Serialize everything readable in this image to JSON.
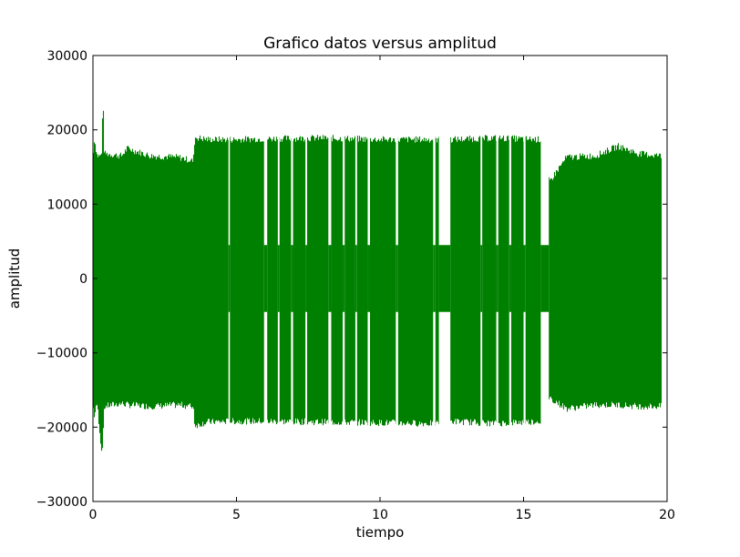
{
  "chart_data": {
    "type": "line",
    "title": "Grafico datos versus amplitud",
    "xlabel": "tiempo",
    "ylabel": "amplitud",
    "xlim": [
      0,
      20
    ],
    "ylim": [
      -30000,
      30000
    ],
    "x_ticks": [
      0,
      5,
      10,
      15,
      20
    ],
    "x_tick_labels": [
      "0",
      "5",
      "10",
      "15",
      "20"
    ],
    "y_ticks": [
      -30000,
      -20000,
      -10000,
      0,
      10000,
      20000,
      30000
    ],
    "y_tick_labels": [
      "−30000",
      "−20000",
      "−10000",
      "0",
      "10000",
      "20000",
      "30000"
    ],
    "grid": false,
    "line_color": "#008000",
    "series": [
      {
        "envelope": [
          {
            "x": 0.0,
            "max": 16000,
            "min": -17000
          },
          {
            "x": 0.05,
            "max": 18800,
            "min": -18500
          },
          {
            "x": 0.15,
            "max": 16500,
            "min": -16800
          },
          {
            "x": 0.3,
            "max": 16500,
            "min": -23200
          },
          {
            "x": 0.35,
            "max": 24500,
            "min": -22000
          },
          {
            "x": 0.4,
            "max": 16800,
            "min": -17200
          },
          {
            "x": 1.0,
            "max": 16500,
            "min": -16800
          },
          {
            "x": 1.2,
            "max": 17500,
            "min": -17000
          },
          {
            "x": 2.0,
            "max": 16500,
            "min": -17200
          },
          {
            "x": 3.0,
            "max": 16300,
            "min": -17000
          },
          {
            "x": 3.5,
            "max": 15800,
            "min": -17200
          },
          {
            "x": 3.55,
            "max": 19000,
            "min": -19800
          },
          {
            "x": 4.0,
            "max": 18700,
            "min": -19300
          },
          {
            "x": 5.0,
            "max": 18700,
            "min": -19200
          },
          {
            "x": 6.0,
            "max": 18800,
            "min": -19200
          },
          {
            "x": 8.0,
            "max": 18900,
            "min": -19300
          },
          {
            "x": 10.0,
            "max": 18700,
            "min": -19400
          },
          {
            "x": 12.0,
            "max": 18700,
            "min": -19500
          },
          {
            "x": 12.5,
            "max": 18700,
            "min": -19200
          },
          {
            "x": 14.0,
            "max": 18900,
            "min": -19500
          },
          {
            "x": 15.6,
            "max": 18700,
            "min": -19200
          },
          {
            "x": 15.9,
            "max": 13000,
            "min": -16000
          },
          {
            "x": 16.5,
            "max": 16300,
            "min": -17500
          },
          {
            "x": 17.5,
            "max": 16500,
            "min": -17000
          },
          {
            "x": 18.3,
            "max": 17800,
            "min": -17000
          },
          {
            "x": 19.0,
            "max": 16800,
            "min": -17200
          },
          {
            "x": 19.8,
            "max": 16500,
            "min": -17200
          }
        ],
        "gaps": [
          {
            "x0": 4.72,
            "x1": 4.77,
            "amp": 4500
          },
          {
            "x0": 5.96,
            "x1": 6.07,
            "amp": 4500
          },
          {
            "x0": 6.44,
            "x1": 6.5,
            "amp": 4500
          },
          {
            "x0": 6.9,
            "x1": 6.97,
            "amp": 4500
          },
          {
            "x0": 7.4,
            "x1": 7.46,
            "amp": 4500
          },
          {
            "x0": 8.2,
            "x1": 8.3,
            "amp": 4500
          },
          {
            "x0": 8.7,
            "x1": 8.77,
            "amp": 4500
          },
          {
            "x0": 9.14,
            "x1": 9.2,
            "amp": 4500
          },
          {
            "x0": 9.57,
            "x1": 9.65,
            "amp": 4500
          },
          {
            "x0": 10.55,
            "x1": 10.63,
            "amp": 4500
          },
          {
            "x0": 11.85,
            "x1": 11.93,
            "amp": 4500
          },
          {
            "x0": 12.05,
            "x1": 12.45,
            "amp": 4500
          },
          {
            "x0": 13.5,
            "x1": 13.56,
            "amp": 4500
          },
          {
            "x0": 14.05,
            "x1": 14.12,
            "amp": 4500
          },
          {
            "x0": 14.5,
            "x1": 14.57,
            "amp": 4500
          },
          {
            "x0": 15.0,
            "x1": 15.07,
            "amp": 4500
          },
          {
            "x0": 15.6,
            "x1": 15.88,
            "amp": 4500
          }
        ]
      }
    ]
  }
}
